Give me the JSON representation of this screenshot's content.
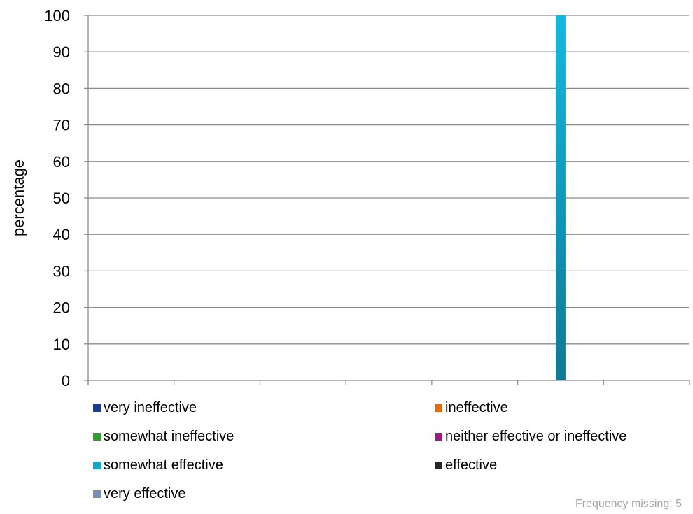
{
  "chart_data": {
    "type": "bar",
    "ylabel": "percentage",
    "ylim": [
      0,
      100
    ],
    "yticks": [
      0,
      10,
      20,
      30,
      40,
      50,
      60,
      70,
      80,
      90,
      100
    ],
    "x_groups": 7,
    "grid": true,
    "legend_position": "bottom",
    "series": [
      {
        "name": "very ineffective",
        "value": 0,
        "color": "#1f3a93"
      },
      {
        "name": "ineffective",
        "value": 0,
        "color": "#e46c0a"
      },
      {
        "name": "somewhat ineffective",
        "value": 0,
        "color": "#2ea02e"
      },
      {
        "name": "neither effective or ineffective",
        "value": 0,
        "color": "#a0197e"
      },
      {
        "name": "somewhat effective",
        "value": 100,
        "group": 5,
        "color": "#13a7c9"
      },
      {
        "name": "effective",
        "value": 0,
        "color": "#262626"
      },
      {
        "name": "very effective",
        "value": 0,
        "color": "#7b8bb8"
      }
    ]
  },
  "footnote": "Frequency missing: 5"
}
